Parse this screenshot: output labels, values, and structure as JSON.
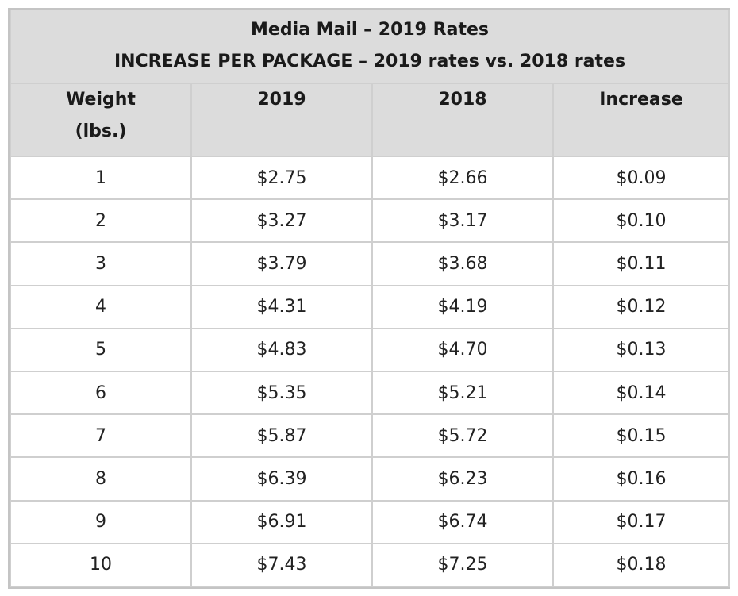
{
  "table": {
    "title_line1": "Media Mail – 2019 Rates",
    "title_line2": "INCREASE PER PACKAGE – 2019 rates vs. 2018 rates",
    "headers": {
      "weight_line1": "Weight",
      "weight_line2": "(lbs.)",
      "col_2019": "2019",
      "col_2018": "2018",
      "col_increase": "Increase"
    },
    "rows": [
      {
        "weight": "1",
        "rate_2019": "$2.75",
        "rate_2018": "$2.66",
        "increase": "$0.09"
      },
      {
        "weight": "2",
        "rate_2019": "$3.27",
        "rate_2018": "$3.17",
        "increase": "$0.10"
      },
      {
        "weight": "3",
        "rate_2019": "$3.79",
        "rate_2018": "$3.68",
        "increase": "$0.11"
      },
      {
        "weight": "4",
        "rate_2019": "$4.31",
        "rate_2018": "$4.19",
        "increase": "$0.12"
      },
      {
        "weight": "5",
        "rate_2019": "$4.83",
        "rate_2018": "$4.70",
        "increase": "$0.13"
      },
      {
        "weight": "6",
        "rate_2019": "$5.35",
        "rate_2018": "$5.21",
        "increase": "$0.14"
      },
      {
        "weight": "7",
        "rate_2019": "$5.87",
        "rate_2018": "$5.72",
        "increase": "$0.15"
      },
      {
        "weight": "8",
        "rate_2019": "$6.39",
        "rate_2018": "$6.23",
        "increase": "$0.16"
      },
      {
        "weight": "9",
        "rate_2019": "$6.91",
        "rate_2018": "$6.74",
        "increase": "$0.17"
      },
      {
        "weight": "10",
        "rate_2019": "$7.43",
        "rate_2018": "$7.25",
        "increase": "$0.18"
      }
    ]
  },
  "colors": {
    "header_background": "#dcdcdc",
    "border": "#cfcfcf"
  }
}
